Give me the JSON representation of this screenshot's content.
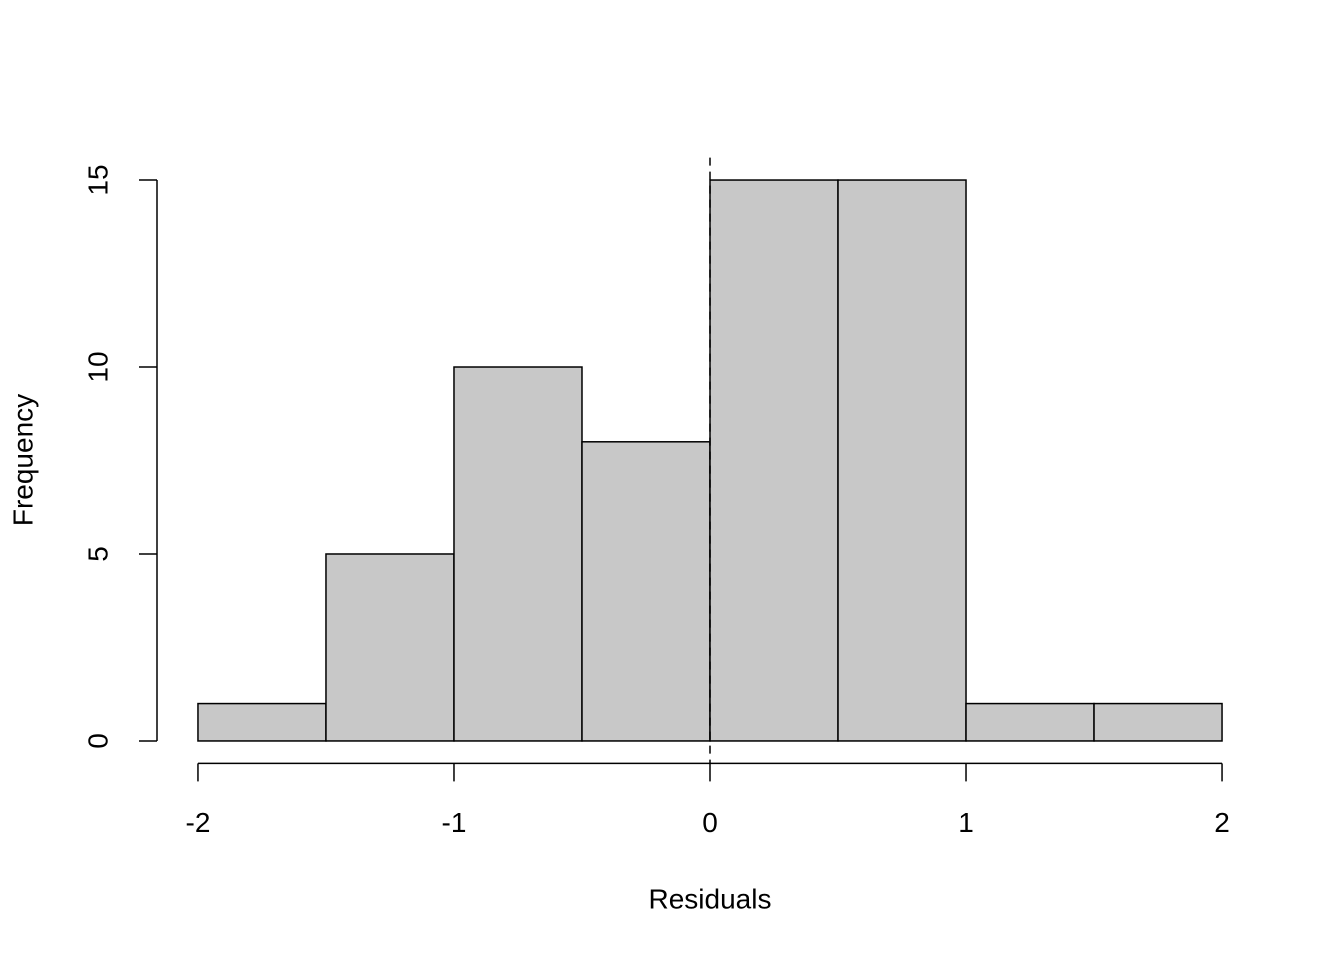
{
  "chart_data": {
    "type": "histogram",
    "x_label": "Residuals",
    "y_label": "Frequency",
    "bins": [
      -2,
      -1.5,
      -1,
      -0.5,
      0,
      0.5,
      1,
      1.5,
      2
    ],
    "values": [
      1,
      5,
      10,
      8,
      15,
      15,
      1,
      1
    ],
    "color": "#c8c8c8",
    "xlim": [
      -2.16,
      2.16
    ],
    "ylim": [
      -0.6,
      15.6
    ],
    "xticks": [
      -2,
      -1,
      0,
      1,
      2
    ],
    "yticks": [
      0,
      5,
      10,
      15
    ],
    "vline": 0
  }
}
